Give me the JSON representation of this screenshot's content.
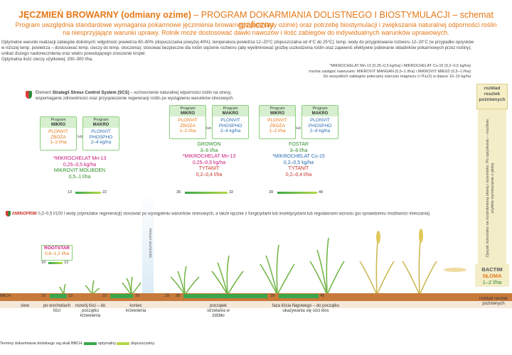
{
  "title": {
    "main": "JĘCZMIEŃ BROWARNY (odmiany ozime)",
    "rest": " – PROGRAM DOKARMIANIA DOLISTNEGO I BIOSTYMULACJI – schemat graficzny"
  },
  "subtitle": {
    "line1": "Program uwzględnia standardowe wymagania pokarmowe jęczmienia browarnego (odmiany ozime) oraz potrzebę biostymulacji i zwiększania naturalnej odporności roślin",
    "line2": "na niesprzyjające warunki uprawy. Rolnik może dostosować dawki nawozów i ilość zabiegów do indywidualnych warunków uprawowych."
  },
  "notes": [
    "Optymalne warunki realizacji zabiegów dolistnych: wilgotność powietrza 60–80% (dopuszczalna powyżej 40%); temperatura powietrza 12–20°C (dopuszczalna od 4°C do 25°C); temp. wody do przygotowania roztworu 12–20°C (w przypadku oprysków",
    "w niższej temp. powietrza – dostosować temp. cieczy do temp. otoczenia); stosować bezpieczne dla roślin stężenie roztworu (aby wyeliminować groźbę uszkodzenia roślin oraz zapewnić efektywne pobieranie składników pokarmowych przez rośliny);",
    "unikać dużego nasłonecznienia oraz wiatru powodującego znoszenie kropel.",
    "Optymalna ilość cieczy użytkowej: 200–300 l/ha."
  ],
  "scs": {
    "line1_bold": "Strategii Stress Control System (SCS)",
    "line1_pre": "Element ",
    "line1_post": " – wzmocnienie naturalnej odporności roślin na stresy,",
    "line2": "wspomaganie zdrowotności oraz przyspieszenie regeneracji roślin po wystąpieniu warunków stresowych."
  },
  "right_note": {
    "line1": "*MIKROCHELAT Mn-13 (0,25–0,5 kg/ha) i MIKROCHELAT Cu-15 (0,2–0,5 kg/ha)",
    "line2": "można zastąpić nawozami: MIKROVIT MANGAN (0,5–1 l/ha) i MIKROVIT MIEDŹ (0,5–1 l/ha)",
    "line3": "Do wszystkich zabiegów polecamy siarczan magnezu (×7H₂O) w dawce 10–15 kg/ha"
  },
  "right_box": "rozkład resztek pożniwnych",
  "vertical_text": "Oprysk ściernisko na rozdrobnioną słomę i ściernisko. Po opryskaniu – możliwie szybkie wymieszanie z glebą",
  "bactim": {
    "name": "BACTIM",
    "name2": "SŁOMA",
    "dose": "1–2 l/ha"
  },
  "groups": [
    {
      "mikro": {
        "head1": "Program",
        "head2": "MIKRO",
        "p1": "PLONVIT",
        "p2": "ZBOŻA",
        "dose": "1–2 l/ha"
      },
      "makro": {
        "head1": "Program",
        "head2": "MAKRO",
        "p1": "PLONVIT",
        "p2": "PHOSPHO",
        "dose": "2–4 kg/ha"
      },
      "lub": "lub",
      "products": [
        {
          "name": "*MIKROCHELAT Mn-13",
          "dose": "0,25–0,5 kg/ha",
          "cls": "mag"
        },
        {
          "name": "MIKROVIT MOLIBDEN",
          "dose": "0,5–1 l/ha",
          "cls": "grn"
        }
      ],
      "bbch": [
        "13",
        "22"
      ]
    },
    {
      "mikro": {
        "head1": "Program",
        "head2": "MIKRO",
        "p1": "PLONVIT",
        "p2": "ZBOŻA",
        "dose": "1–2 l/ha"
      },
      "makro": {
        "head1": "Program",
        "head2": "MAKRO",
        "p1": "PLONVIT",
        "p2": "PHOSPHO",
        "dose": "2–4 kg/ha"
      },
      "lub": "lub",
      "products": [
        {
          "name": "GROWON",
          "dose": "3–6 l/ha",
          "cls": "grn"
        },
        {
          "name": "*MIKROCHELAT Mn-13",
          "dose": "0,25–0,5 kg/ha",
          "cls": "mag"
        },
        {
          "name": "TYTANIT",
          "dose": "0,2–0,4 l/ha",
          "cls": "redd"
        }
      ],
      "bbch": [
        "30",
        "32"
      ]
    },
    {
      "mikro": {
        "head1": "Program",
        "head2": "MIKRO",
        "p1": "PLONVIT",
        "p2": "ZBOŻA",
        "dose": "1–2 l/ha"
      },
      "makro": {
        "head1": "Program",
        "head2": "MAKRO",
        "p1": "PLONVIT",
        "p2": "PHOSPHO",
        "dose": "2–4 kg/ha"
      },
      "lub": "lub",
      "products": [
        {
          "name": "FOSTAR",
          "dose": "3–6 l/ha",
          "cls": "grn"
        },
        {
          "name": "*MIKROCHELAT Cu-15",
          "dose": "0,2–0,5 kg/ha",
          "cls": "blu2"
        },
        {
          "name": "TYTANIT",
          "dose": "0,2–0,4 l/ha",
          "cls": "redd"
        }
      ],
      "bbch": [
        "39",
        "49"
      ]
    }
  ],
  "amino": {
    "name": "AMINOPRIM",
    "text": " 0,2–0,5 l/100 l wody (stymulator regeneracji) stosować po wystąpieniu warunków stresowych, a także łącznie z fungicydami lub insektycydami lub regulatorami wzrostu (po sprawdzeniu możliwości mieszania)."
  },
  "rootstar": {
    "name": "ROOTSTAR",
    "dose": "0,8–1,2 l/ha",
    "bbch": [
      "10",
      "13"
    ]
  },
  "spoczynek": "spoczynek zimowy",
  "scale": {
    "label": "BBCH",
    "numbers": [
      "10",
      "13",
      "22",
      "29",
      "29",
      "30",
      "39",
      "49"
    ]
  },
  "stages": [
    "siew",
    "po wschodach liści",
    "rozwój liści – do początku krzewienia",
    "koniec krzewienia",
    "początek strzelania w źdźbło",
    "faza liścia flagowego – do początku ukazywania się ości kłos"
  ],
  "end_label": "rozkład resztek pożniwnych",
  "legend": {
    "prefix": "Terminy dokarmiania dolistnego wg skali BBCH:",
    "optimal": "optymalny",
    "allowed": "dopuszczalny"
  }
}
